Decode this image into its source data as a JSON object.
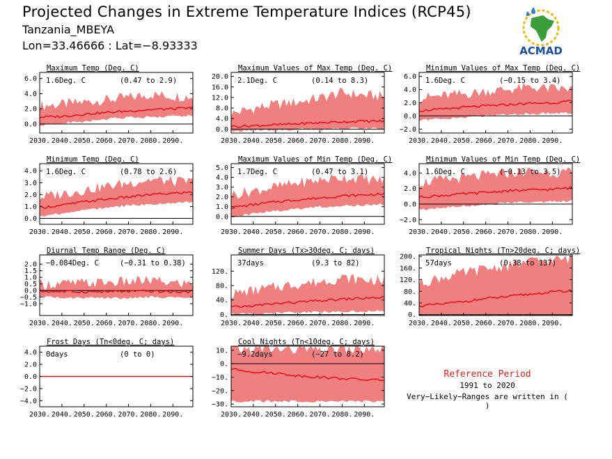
{
  "header": {
    "title": "Projected Changes in Extreme Temperature Indices (RCP45)",
    "location": "Tanzania_MBEYA",
    "coords": "Lon=33.46666 : Lat=−8.93333"
  },
  "logo": {
    "text": "ACMAD",
    "icon": "africa-map-logo"
  },
  "reference": {
    "title": "Reference Period",
    "years": "1991 to 2020",
    "note": "Very−Likely−Ranges are written in ( )"
  },
  "colors": {
    "band": "#f08080",
    "line": "#e8141b",
    "zero": "#000000"
  },
  "chart_data": [
    {
      "type": "area",
      "title": "Maximum Temp (Deg. C)",
      "summary": "1.6Deg. C",
      "range": "(0.47 to 2.9)",
      "xticks": [
        "2030.",
        "2040.",
        "2050.",
        "2060.",
        "2070.",
        "2080.",
        "2090."
      ],
      "xlim": [
        2030,
        2099
      ],
      "ylim": [
        -1.2,
        6.8
      ],
      "yticks": [
        0,
        2,
        4,
        6
      ],
      "yticklabels": [
        "0.0",
        "2.0",
        "4.0",
        "6.0"
      ],
      "series": [
        {
          "x": [
            2030,
            2040,
            2050,
            2060,
            2070,
            2080,
            2090,
            2099
          ],
          "values": [
            0.9,
            1.0,
            1.3,
            1.5,
            1.7,
            1.9,
            2.0,
            2.1
          ]
        },
        {
          "x": [
            2030,
            2040,
            2050,
            2060,
            2070,
            2080,
            2090,
            2099
          ],
          "values": [
            0.0,
            0.3,
            0.5,
            0.8,
            1.0,
            1.1,
            1.2,
            1.3
          ]
        },
        {
          "x": [
            2030,
            2040,
            2050,
            2060,
            2070,
            2080,
            2090,
            2099
          ],
          "values": [
            2.1,
            2.3,
            2.6,
            2.9,
            3.2,
            3.6,
            3.4,
            3.3
          ]
        }
      ]
    },
    {
      "type": "area",
      "title": "Maximum Values of Max Temp (Deg. C)",
      "summary": "2.1Deg. C",
      "range": "(0.14 to 8.3)",
      "xticks": [
        "2030.",
        "2040.",
        "2050.",
        "2060.",
        "2070.",
        "2080.",
        "2090."
      ],
      "xlim": [
        2030,
        2099
      ],
      "ylim": [
        -1.5,
        21.5
      ],
      "yticks": [
        0,
        4,
        8,
        12,
        16,
        20
      ],
      "yticklabels": [
        "0.0",
        "4.0",
        "8.0",
        "12.0",
        "16.0",
        "20.0"
      ],
      "series": [
        {
          "x": [
            2030,
            2040,
            2050,
            2060,
            2070,
            2080,
            2090,
            2099
          ],
          "values": [
            1.0,
            1.3,
            1.6,
            2.0,
            2.4,
            2.8,
            3.0,
            3.0
          ]
        },
        {
          "x": [
            2030,
            2040,
            2050,
            2060,
            2070,
            2080,
            2090,
            2099
          ],
          "values": [
            -0.2,
            0.0,
            0.2,
            0.4,
            0.5,
            0.6,
            0.7,
            0.7
          ]
        },
        {
          "x": [
            2030,
            2040,
            2050,
            2060,
            2070,
            2080,
            2090,
            2099
          ],
          "values": [
            5.0,
            7.0,
            8.5,
            9.5,
            11.0,
            13.0,
            12.0,
            11.5
          ]
        }
      ]
    },
    {
      "type": "area",
      "title": "Minimum Values of Max Temp (Deg. C)",
      "summary": "1.6Deg. C",
      "range": "(−0.15 to 3.4)",
      "xticks": [
        "2030.",
        "2040.",
        "2050.",
        "2060.",
        "2070.",
        "2080.",
        "2090."
      ],
      "xlim": [
        2030,
        2099
      ],
      "ylim": [
        -2.6,
        6.6
      ],
      "yticks": [
        -2,
        0,
        2,
        4,
        6
      ],
      "yticklabels": [
        "−2.0",
        "0.0",
        "2.0",
        "4.0",
        "6.0"
      ],
      "series": [
        {
          "x": [
            2030,
            2040,
            2050,
            2060,
            2070,
            2080,
            2090,
            2099
          ],
          "values": [
            0.8,
            1.0,
            1.3,
            1.5,
            1.7,
            1.9,
            2.0,
            2.2
          ]
        },
        {
          "x": [
            2030,
            2040,
            2050,
            2060,
            2070,
            2080,
            2090,
            2099
          ],
          "values": [
            -0.5,
            -0.3,
            0.0,
            0.2,
            0.4,
            0.5,
            0.6,
            0.7
          ]
        },
        {
          "x": [
            2030,
            2040,
            2050,
            2060,
            2070,
            2080,
            2090,
            2099
          ],
          "values": [
            2.4,
            2.7,
            3.0,
            3.4,
            3.7,
            4.0,
            3.8,
            3.7
          ]
        }
      ]
    },
    {
      "type": "area",
      "title": "Minimum Temp (Deg. C)",
      "summary": "1.6Deg. C",
      "range": "(0.78 to 2.6)",
      "xticks": [
        "2030.",
        "2040.",
        "2050.",
        "2060.",
        "2070.",
        "2080.",
        "2090."
      ],
      "xlim": [
        2030,
        2099
      ],
      "ylim": [
        -0.5,
        4.6
      ],
      "yticks": [
        0,
        1,
        2,
        3,
        4
      ],
      "yticklabels": [
        "0.0",
        "1.0",
        "2.0",
        "3.0",
        "4.0"
      ],
      "series": [
        {
          "x": [
            2030,
            2040,
            2050,
            2060,
            2070,
            2080,
            2090,
            2099
          ],
          "values": [
            0.9,
            1.1,
            1.4,
            1.6,
            1.8,
            2.0,
            2.1,
            2.2
          ]
        },
        {
          "x": [
            2030,
            2040,
            2050,
            2060,
            2070,
            2080,
            2090,
            2099
          ],
          "values": [
            0.3,
            0.5,
            0.8,
            1.0,
            1.2,
            1.3,
            1.4,
            1.5
          ]
        },
        {
          "x": [
            2030,
            2040,
            2050,
            2060,
            2070,
            2080,
            2090,
            2099
          ],
          "values": [
            1.6,
            1.9,
            2.2,
            2.5,
            2.8,
            3.1,
            2.9,
            2.9
          ]
        }
      ]
    },
    {
      "type": "area",
      "title": "Maximum Values of Min Temp (Deg. C)",
      "summary": "1.7Deg. C",
      "range": "(0.47 to 3.1)",
      "xticks": [
        "2030.",
        "2040.",
        "2050.",
        "2060.",
        "2070.",
        "2080.",
        "2090."
      ],
      "xlim": [
        2030,
        2099
      ],
      "ylim": [
        -0.8,
        5.4
      ],
      "yticks": [
        0,
        1,
        2,
        3,
        4,
        5
      ],
      "yticklabels": [
        "0.0",
        "1.0",
        "2.0",
        "3.0",
        "4.0",
        "5.0"
      ],
      "series": [
        {
          "x": [
            2030,
            2040,
            2050,
            2060,
            2070,
            2080,
            2090,
            2099
          ],
          "values": [
            0.9,
            1.2,
            1.5,
            1.7,
            1.9,
            2.1,
            2.2,
            2.3
          ]
        },
        {
          "x": [
            2030,
            2040,
            2050,
            2060,
            2070,
            2080,
            2090,
            2099
          ],
          "values": [
            0.1,
            0.4,
            0.7,
            0.9,
            1.1,
            1.2,
            1.3,
            1.4
          ]
        },
        {
          "x": [
            2030,
            2040,
            2050,
            2060,
            2070,
            2080,
            2090,
            2099
          ],
          "values": [
            2.0,
            2.4,
            2.8,
            3.2,
            3.5,
            3.8,
            3.6,
            3.5
          ]
        }
      ]
    },
    {
      "type": "area",
      "title": "Minimum Values of Min Temp (Deg. C)",
      "summary": "1.6Deg. C",
      "range": "(−0.13 to 3.5)",
      "xticks": [
        "2030.",
        "2040.",
        "2050.",
        "2060.",
        "2070.",
        "2080.",
        "2090."
      ],
      "xlim": [
        2030,
        2099
      ],
      "ylim": [
        -2.6,
        5.2
      ],
      "yticks": [
        -2,
        0,
        2,
        4
      ],
      "yticklabels": [
        "−2.0",
        "0.0",
        "2.0",
        "4.0"
      ],
      "series": [
        {
          "x": [
            2030,
            2040,
            2050,
            2060,
            2070,
            2080,
            2090,
            2099
          ],
          "values": [
            0.9,
            1.1,
            1.3,
            1.5,
            1.7,
            1.8,
            1.9,
            2.1
          ]
        },
        {
          "x": [
            2030,
            2040,
            2050,
            2060,
            2070,
            2080,
            2090,
            2099
          ],
          "values": [
            -0.6,
            -0.3,
            -0.1,
            0.1,
            0.3,
            0.4,
            0.5,
            0.6
          ]
        },
        {
          "x": [
            2030,
            2040,
            2050,
            2060,
            2070,
            2080,
            2090,
            2099
          ],
          "values": [
            2.5,
            2.8,
            3.1,
            3.4,
            3.7,
            3.9,
            3.8,
            3.7
          ]
        }
      ]
    },
    {
      "type": "area",
      "title": "Diurnal Temp Range (Deg. C)",
      "summary": "−0.084Deg. C",
      "range": "(−0.31 to 0.38)",
      "xticks": [
        "2030.",
        "2040.",
        "2050.",
        "2060.",
        "2070.",
        "2080.",
        "2090."
      ],
      "xlim": [
        2030,
        2099
      ],
      "ylim": [
        -1.9,
        2.7
      ],
      "yticks": [
        -1,
        -0.5,
        0,
        0.5,
        1,
        1.5,
        2
      ],
      "yticklabels": [
        "−1.0",
        "−0.5",
        "0.0",
        "0.5",
        "1.0",
        "1.5",
        "2.0"
      ],
      "series": [
        {
          "x": [
            2030,
            2040,
            2050,
            2060,
            2070,
            2080,
            2090,
            2099
          ],
          "values": [
            -0.05,
            -0.08,
            -0.1,
            -0.08,
            -0.07,
            -0.05,
            -0.1,
            -0.1
          ]
        },
        {
          "x": [
            2030,
            2040,
            2050,
            2060,
            2070,
            2080,
            2090,
            2099
          ],
          "values": [
            -0.4,
            -0.45,
            -0.45,
            -0.45,
            -0.45,
            -0.4,
            -0.45,
            -0.45
          ]
        },
        {
          "x": [
            2030,
            2040,
            2050,
            2060,
            2070,
            2080,
            2090,
            2099
          ],
          "values": [
            0.3,
            0.35,
            0.4,
            0.45,
            0.5,
            0.6,
            0.4,
            0.35
          ]
        }
      ]
    },
    {
      "type": "area",
      "title": "Summer Days (Tx>30deg. C; days)",
      "summary": "37days",
      "range": "(9.3 to 82)",
      "xticks": [
        "2030.",
        "2040.",
        "2050.",
        "2060.",
        "2070.",
        "2080.",
        "2090."
      ],
      "xlim": [
        2030,
        2099
      ],
      "ylim": [
        -3,
        165
      ],
      "yticks": [
        0,
        40,
        80,
        120
      ],
      "yticklabels": [
        "0.",
        "40.",
        "80.",
        "120."
      ],
      "series": [
        {
          "x": [
            2030,
            2040,
            2050,
            2060,
            2070,
            2080,
            2090,
            2099
          ],
          "values": [
            20,
            24,
            30,
            34,
            38,
            42,
            45,
            47
          ]
        },
        {
          "x": [
            2030,
            2040,
            2050,
            2060,
            2070,
            2080,
            2090,
            2099
          ],
          "values": [
            3,
            5,
            7,
            9,
            10,
            11,
            12,
            12
          ]
        },
        {
          "x": [
            2030,
            2040,
            2050,
            2060,
            2070,
            2080,
            2090,
            2099
          ],
          "values": [
            50,
            60,
            70,
            78,
            85,
            95,
            90,
            88
          ]
        }
      ]
    },
    {
      "type": "area",
      "title": "Tropical Nights (Tn>20deg. C; days)",
      "summary": "57days",
      "range": "(0.38 to 137)",
      "xticks": [
        "2030.",
        "2040.",
        "2050.",
        "2060.",
        "2070.",
        "2080.",
        "2090."
      ],
      "xlim": [
        2030,
        2099
      ],
      "ylim": [
        -3,
        205
      ],
      "yticks": [
        0,
        40,
        80,
        120,
        160,
        200
      ],
      "yticklabels": [
        "0.",
        "40.",
        "80.",
        "120.",
        "160.",
        "200."
      ],
      "series": [
        {
          "x": [
            2030,
            2040,
            2050,
            2060,
            2070,
            2080,
            2090,
            2099
          ],
          "values": [
            30,
            36,
            45,
            55,
            62,
            70,
            78,
            82
          ]
        },
        {
          "x": [
            2030,
            2040,
            2050,
            2060,
            2070,
            2080,
            2090,
            2099
          ],
          "values": [
            0,
            0,
            0,
            0,
            0,
            0,
            0,
            0
          ]
        },
        {
          "x": [
            2030,
            2040,
            2050,
            2060,
            2070,
            2080,
            2090,
            2099
          ],
          "values": [
            100,
            120,
            135,
            150,
            160,
            175,
            180,
            185
          ]
        }
      ]
    },
    {
      "type": "area",
      "title": "Frost Days (Tn<0deg. C; days)",
      "summary": "0days",
      "range": "(0 to 0)",
      "xticks": [
        "2030.",
        "2040.",
        "2050.",
        "2060.",
        "2070.",
        "2080.",
        "2090."
      ],
      "xlim": [
        2030,
        2099
      ],
      "ylim": [
        -5,
        5
      ],
      "yticks": [
        -4,
        -2,
        0,
        2,
        4
      ],
      "yticklabels": [
        "−4.0",
        "−2.0",
        "0.0",
        "2.0",
        "4.0"
      ],
      "series": [
        {
          "x": [
            2030,
            2099
          ],
          "values": [
            0,
            0
          ]
        },
        {
          "x": [
            2030,
            2099
          ],
          "values": [
            0,
            0
          ]
        },
        {
          "x": [
            2030,
            2099
          ],
          "values": [
            0,
            0
          ]
        }
      ]
    },
    {
      "type": "area",
      "title": "Cool Nights (Tn<10deg. C; days)",
      "summary": "−9.2days",
      "range": "(−27 to 8.2)",
      "xticks": [
        "2030.",
        "2040.",
        "2050.",
        "2060.",
        "2070.",
        "2080.",
        "2090."
      ],
      "xlim": [
        2030,
        2099
      ],
      "ylim": [
        -32,
        13
      ],
      "yticks": [
        -30,
        -20,
        -10,
        0,
        10
      ],
      "yticklabels": [
        "−30.",
        "−20.",
        "−10.",
        "0.",
        "10."
      ],
      "series": [
        {
          "x": [
            2030,
            2040,
            2050,
            2060,
            2070,
            2080,
            2090,
            2099
          ],
          "values": [
            -4,
            -6,
            -7,
            -9,
            -10,
            -11,
            -12,
            -12
          ]
        },
        {
          "x": [
            2030,
            2040,
            2050,
            2060,
            2070,
            2080,
            2090,
            2099
          ],
          "values": [
            -27,
            -27,
            -27,
            -27,
            -27,
            -27,
            -27,
            -27
          ]
        },
        {
          "x": [
            2030,
            2040,
            2050,
            2060,
            2070,
            2080,
            2090,
            2099
          ],
          "values": [
            9,
            9,
            9,
            9,
            9,
            9,
            9,
            9
          ]
        }
      ]
    }
  ]
}
